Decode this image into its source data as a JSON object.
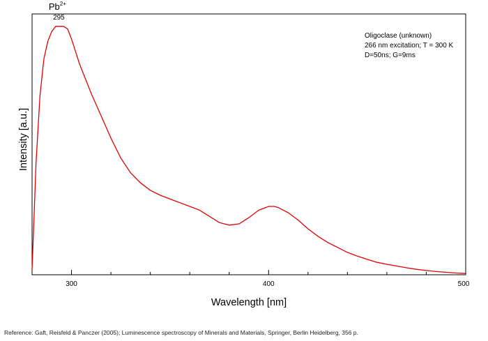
{
  "chart_data": {
    "type": "line",
    "xlabel": "Wavelength [nm]",
    "ylabel": "Intensity [a.u.]",
    "xlim": [
      280,
      500
    ],
    "ylim": [
      0,
      1.05
    ],
    "xticks": [
      300,
      400,
      500
    ],
    "grid": false,
    "legend": "none",
    "line_color": "#e00000",
    "info_lines": [
      "Oligoclase (unknown)",
      "266 nm excitation; T = 300 K",
      "D=50ns; G=9ms"
    ],
    "peak_annotation": {
      "ion": "Pb",
      "charge": "2+",
      "wavelength_label": "295",
      "x": 295,
      "y": 1.0
    },
    "series": [
      {
        "x": [
          280,
          282,
          284,
          286,
          288,
          290,
          292,
          294,
          295,
          296,
          298,
          300,
          302,
          304,
          306,
          308,
          310,
          315,
          320,
          325,
          330,
          335,
          340,
          345,
          350,
          355,
          360,
          365,
          370,
          375,
          380,
          385,
          390,
          395,
          400,
          403,
          405,
          410,
          415,
          420,
          425,
          430,
          435,
          440,
          445,
          450,
          455,
          460,
          465,
          470,
          475,
          480,
          485,
          490,
          495,
          500
        ],
        "y": [
          0.02,
          0.45,
          0.72,
          0.87,
          0.94,
          0.98,
          1.0,
          1.0,
          1.0,
          1.0,
          0.99,
          0.95,
          0.9,
          0.85,
          0.81,
          0.77,
          0.73,
          0.64,
          0.55,
          0.47,
          0.41,
          0.37,
          0.34,
          0.32,
          0.305,
          0.29,
          0.275,
          0.26,
          0.235,
          0.21,
          0.2,
          0.205,
          0.23,
          0.26,
          0.275,
          0.275,
          0.27,
          0.25,
          0.22,
          0.185,
          0.155,
          0.13,
          0.11,
          0.09,
          0.075,
          0.062,
          0.05,
          0.042,
          0.035,
          0.028,
          0.022,
          0.017,
          0.013,
          0.01,
          0.007,
          0.005
        ]
      }
    ]
  },
  "reference": "Reference: Gaft, Reisfeld & Panczer (2005); Luminescence spectroscopy of Minerals and Materials, Springer, Berlin Heidelberg, 356 p."
}
